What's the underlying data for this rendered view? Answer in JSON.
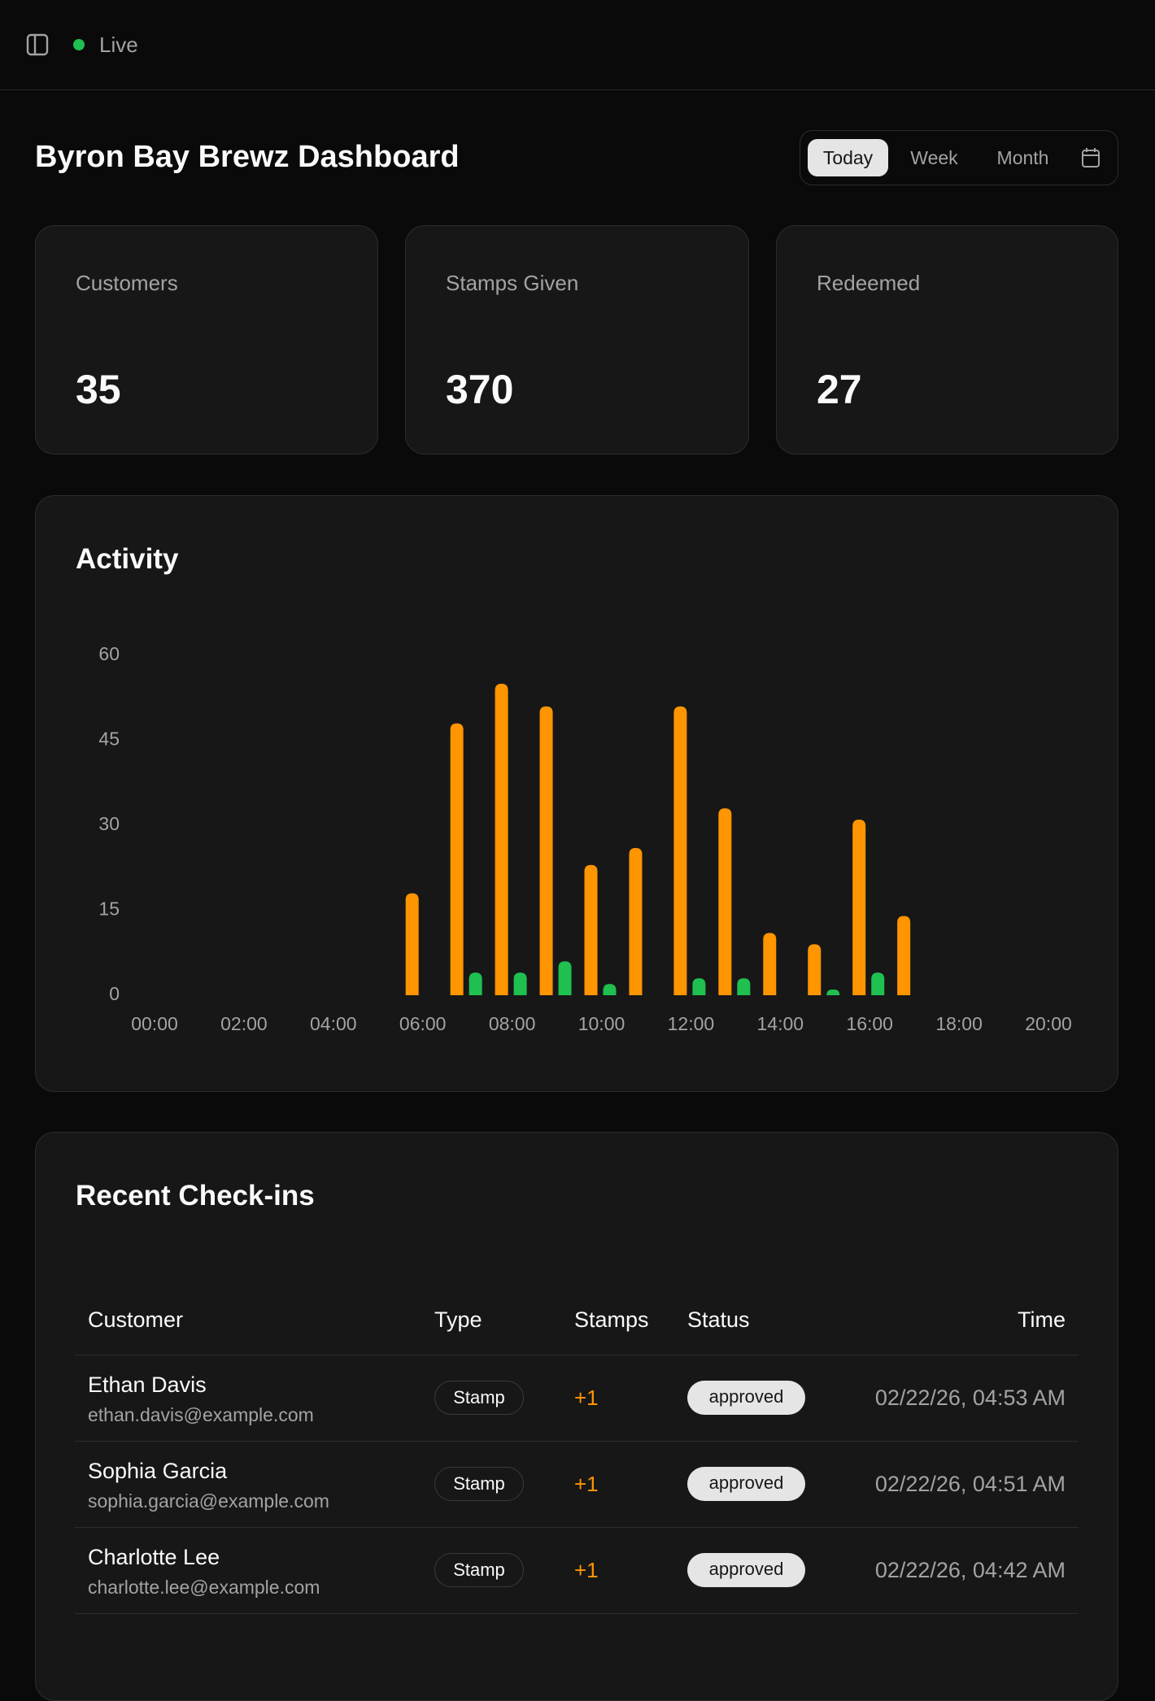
{
  "header": {
    "status": "Live"
  },
  "dashboard": {
    "title": "Byron Bay Brewz Dashboard",
    "ranges": [
      "Today",
      "Week",
      "Month"
    ]
  },
  "stats": [
    {
      "label": "Customers",
      "value": "35"
    },
    {
      "label": "Stamps Given",
      "value": "370"
    },
    {
      "label": "Redeemed",
      "value": "27"
    }
  ],
  "chart_data": {
    "type": "bar",
    "title": "Activity",
    "categories": [
      "00:00",
      null,
      "02:00",
      null,
      "04:00",
      null,
      "06:00",
      null,
      "08:00",
      null,
      "10:00",
      null,
      "12:00",
      null,
      "14:00",
      null,
      "16:00",
      null,
      "18:00",
      null,
      "20:00"
    ],
    "series": [
      {
        "color": "#ff9500",
        "values": [
          0,
          0,
          0,
          0,
          0,
          0,
          18,
          48,
          55,
          51,
          23,
          26,
          51,
          33,
          11,
          9,
          31,
          14,
          0,
          0,
          0
        ]
      },
      {
        "color": "#1fc04f",
        "values": [
          0,
          0,
          0,
          0,
          0,
          0,
          0,
          4,
          4,
          6,
          2,
          0,
          3,
          3,
          0,
          1,
          4,
          0,
          0,
          0,
          0
        ]
      }
    ],
    "ylim": [
      0,
      60
    ],
    "yticks": [
      0,
      15,
      30,
      45,
      60
    ]
  },
  "checkins": {
    "title": "Recent Check-ins",
    "columns": [
      "Customer",
      "Type",
      "Stamps",
      "Status",
      "Time"
    ],
    "rows": [
      {
        "name": "Ethan Davis",
        "email": "ethan.davis@example.com",
        "type": "Stamp",
        "stamps": "+1",
        "status": "approved",
        "time": "02/22/26, 04:53 AM"
      },
      {
        "name": "Sophia Garcia",
        "email": "sophia.garcia@example.com",
        "type": "Stamp",
        "stamps": "+1",
        "status": "approved",
        "time": "02/22/26, 04:51 AM"
      },
      {
        "name": "Charlotte Lee",
        "email": "charlotte.lee@example.com",
        "type": "Stamp",
        "stamps": "+1",
        "status": "approved",
        "time": "02/22/26, 04:42 AM"
      }
    ]
  }
}
